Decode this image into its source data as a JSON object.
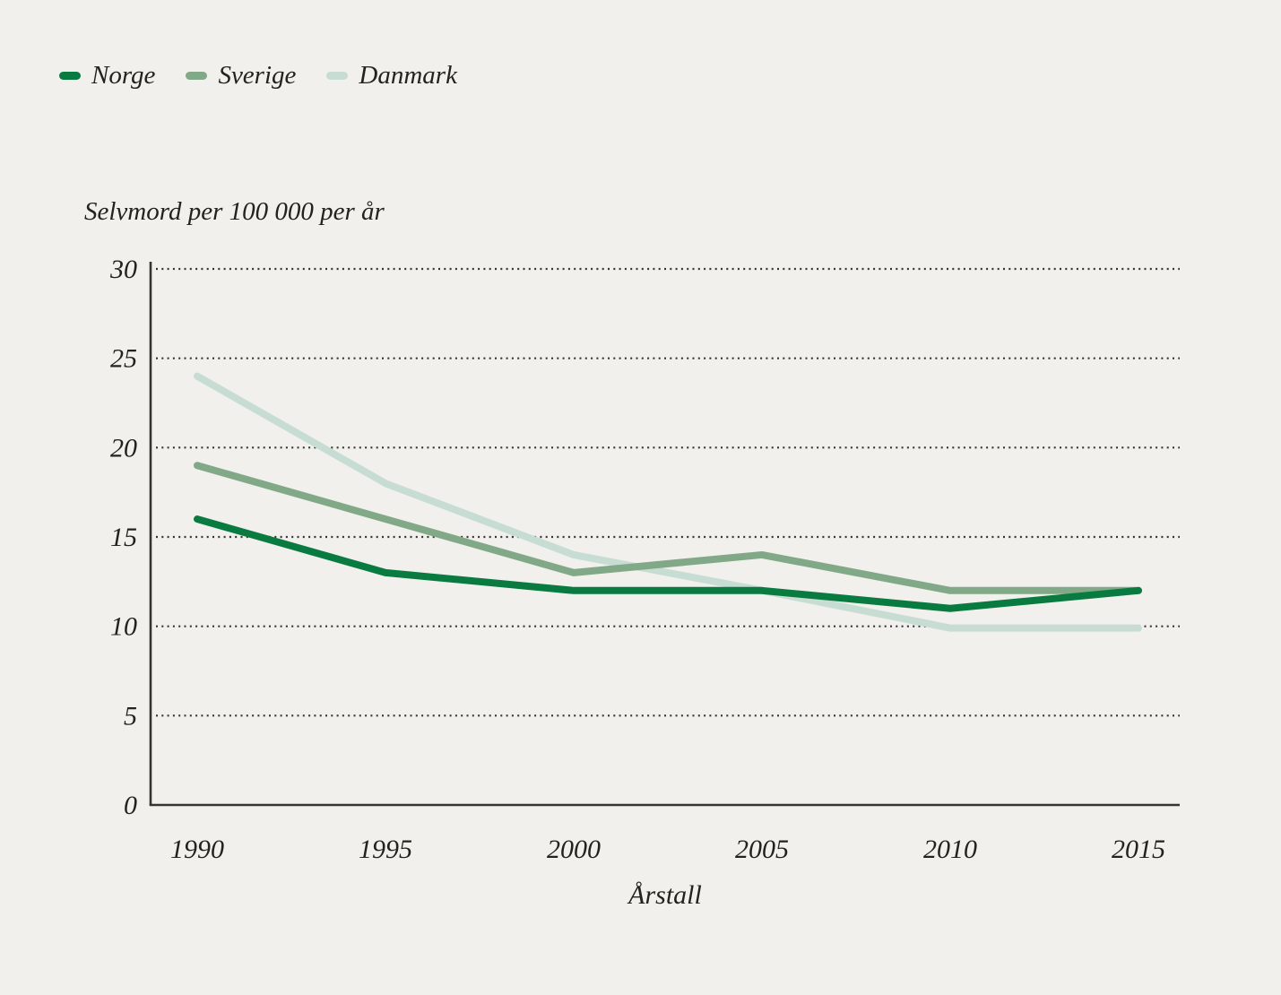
{
  "colors": {
    "background": "#f1f0ec",
    "text": "#24221e",
    "axis": "#35342f",
    "grid": "#35342f"
  },
  "chart_data": {
    "type": "line",
    "title": "",
    "ylabel": "Selvmord per 100 000 per år",
    "xlabel": "Årstall",
    "x": [
      1990,
      1995,
      2000,
      2005,
      2010,
      2015
    ],
    "x_tick_labels": [
      "1990",
      "1995",
      "2000",
      "2005",
      "2010",
      "2015"
    ],
    "y_ticks": [
      0,
      5,
      10,
      15,
      20,
      25,
      30
    ],
    "ylim": [
      0,
      30
    ],
    "xlim": [
      1990,
      2015
    ],
    "grid": "horizontal-dotted",
    "legend_position": "top-left",
    "series": [
      {
        "name": "Norge",
        "color": "#0a7b40",
        "values": [
          16,
          13,
          12,
          12,
          11,
          12
        ]
      },
      {
        "name": "Sverige",
        "color": "#82a987",
        "values": [
          19,
          16,
          13,
          14,
          12,
          12
        ]
      },
      {
        "name": "Danmark",
        "color": "#c7ddd4",
        "values": [
          24,
          18,
          14,
          12,
          9.9,
          9.9
        ]
      }
    ]
  }
}
